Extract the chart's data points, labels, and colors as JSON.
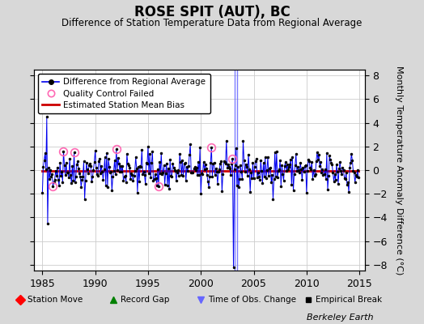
{
  "title": "ROSE SPIT (AUT), BC",
  "subtitle": "Difference of Station Temperature Data from Regional Average",
  "ylabel": "Monthly Temperature Anomaly Difference (°C)",
  "xlabel_credit": "Berkeley Earth",
  "xlim": [
    1984.2,
    2015.5
  ],
  "ylim": [
    -8.5,
    8.5
  ],
  "yticks": [
    -8,
    -6,
    -4,
    -2,
    0,
    2,
    4,
    6,
    8
  ],
  "xticks": [
    1985,
    1990,
    1995,
    2000,
    2005,
    2010,
    2015
  ],
  "plot_bg": "#ffffff",
  "fig_bg": "#d8d8d8",
  "line_color": "#0000ee",
  "marker_color": "#000000",
  "qc_fail_color": "#ff69b4",
  "bias_color": "#cc0000",
  "vline_color": "#6666ff",
  "seed": 42,
  "n_points": 360,
  "start_year": 1985.0,
  "end_year": 2014.917,
  "bias_value": -0.05,
  "qc_fail_indices": [
    12,
    24,
    36,
    84,
    132,
    192,
    216
  ],
  "vline_years": [
    2003.2,
    2003.45
  ],
  "spike_up_idx": 5,
  "spike_up_val": 4.5,
  "spike_down_idx": 6,
  "spike_down_val": -4.5,
  "big_spike_idx": 217,
  "big_spike_val": -8.2
}
